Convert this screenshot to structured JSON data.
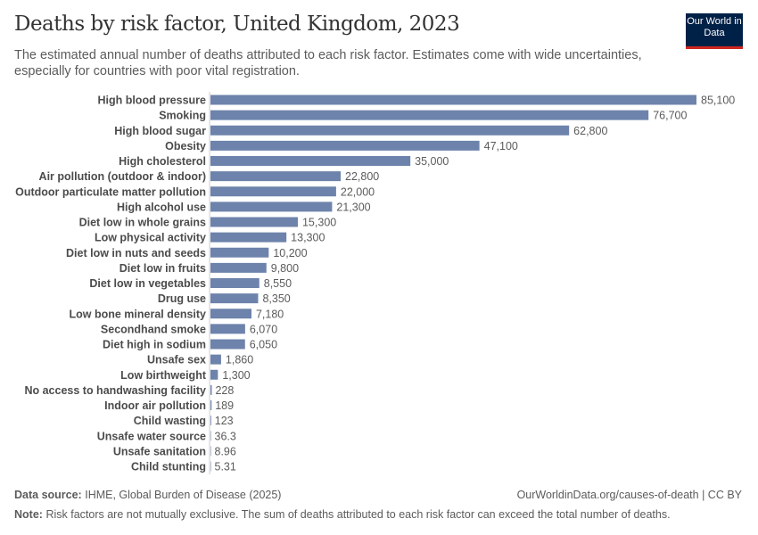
{
  "header": {
    "title": "Deaths by risk factor, United Kingdom, 2023",
    "subtitle": "The estimated annual number of deaths attributed to each risk factor. Estimates come with wide uncertainties, especially for countries with poor vital registration.",
    "logo": "Our World in Data"
  },
  "footer": {
    "source_label": "Data source:",
    "source": "IHME, Global Burden of Disease (2025)",
    "url": "OurWorldinData.org/causes-of-death | CC BY",
    "note_label": "Note:",
    "note": "Risk factors are not mutually exclusive. The sum of deaths attributed to each risk factor can exceed the total number of deaths."
  },
  "chart_data": {
    "type": "bar",
    "orientation": "horizontal",
    "title": "Deaths by risk factor, United Kingdom, 2023",
    "bar_color": "#6d83ab",
    "categories": [
      "High blood pressure",
      "Smoking",
      "High blood sugar",
      "Obesity",
      "High cholesterol",
      "Air pollution (outdoor & indoor)",
      "Outdoor particulate matter pollution",
      "High alcohol use",
      "Diet low in whole grains",
      "Low physical activity",
      "Diet low in nuts and seeds",
      "Diet low in fruits",
      "Diet low in vegetables",
      "Drug use",
      "Low bone mineral density",
      "Secondhand smoke",
      "Diet high in sodium",
      "Unsafe sex",
      "Low birthweight",
      "No access to handwashing facility",
      "Indoor air pollution",
      "Child wasting",
      "Unsafe water source",
      "Unsafe sanitation",
      "Child stunting"
    ],
    "values": [
      85100,
      76700,
      62800,
      47100,
      35000,
      22800,
      22000,
      21300,
      15300,
      13300,
      10200,
      9800,
      8550,
      8350,
      7180,
      6070,
      6050,
      1860,
      1300,
      228,
      189,
      123,
      36.3,
      8.96,
      5.31
    ],
    "value_labels": [
      "85,100",
      "76,700",
      "62,800",
      "47,100",
      "35,000",
      "22,800",
      "22,000",
      "21,300",
      "15,300",
      "13,300",
      "10,200",
      "9,800",
      "8,550",
      "8,350",
      "7,180",
      "6,070",
      "6,050",
      "1,860",
      "1,300",
      "228",
      "189",
      "123",
      "36.3",
      "8.96",
      "5.31"
    ]
  }
}
